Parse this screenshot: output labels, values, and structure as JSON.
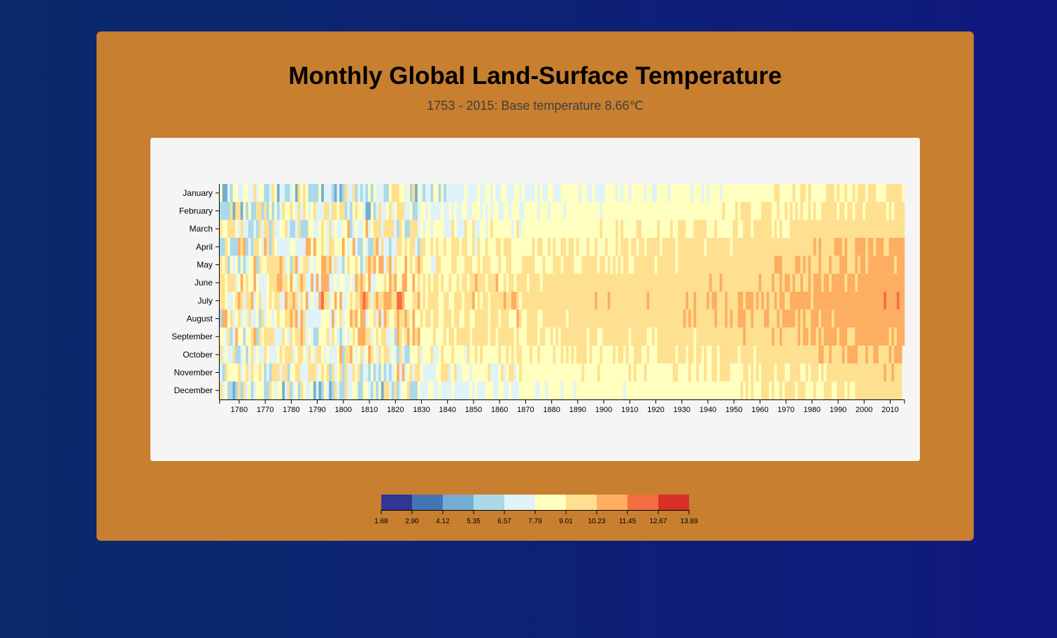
{
  "header": {
    "title": "Monthly Global Land-Surface Temperature",
    "subtitle": "1753 - 2015: Base temperature 8.66℃"
  },
  "chart_data": {
    "type": "heatmap",
    "base_temperature": 8.66,
    "x_range": [
      1753,
      2015
    ],
    "x_ticks": [
      "1760",
      "1770",
      "1780",
      "1790",
      "1800",
      "1810",
      "1820",
      "1830",
      "1840",
      "1850",
      "1860",
      "1870",
      "1880",
      "1890",
      "1900",
      "1910",
      "1920",
      "1930",
      "1940",
      "1950",
      "1960",
      "1970",
      "1980",
      "1990",
      "2000",
      "2010"
    ],
    "y_categories": [
      "January",
      "February",
      "March",
      "April",
      "May",
      "June",
      "July",
      "August",
      "September",
      "October",
      "November",
      "December"
    ],
    "last_year_months": 9,
    "color_scale": {
      "thresholds": [
        "1.68",
        "2.90",
        "4.12",
        "5.35",
        "6.57",
        "7.79",
        "9.01",
        "10.23",
        "11.45",
        "12.67",
        "13.89"
      ],
      "colors": [
        "#313695",
        "#4575b4",
        "#74add1",
        "#abd9e9",
        "#e0f3f8",
        "#ffffbf",
        "#fee090",
        "#fdae61",
        "#f46d43",
        "#d73027"
      ]
    }
  },
  "colors": {
    "background_left": "#0a2a6a",
    "background_right": "#10197f",
    "card": "#c87f2f",
    "panel": "#f5f5f5"
  }
}
